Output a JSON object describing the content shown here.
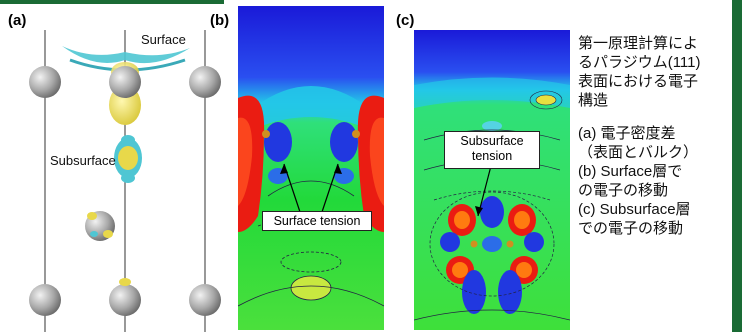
{
  "panel_a": {
    "label": "(a)",
    "surface_label": "Surface",
    "subsurface_label": "Subsurface"
  },
  "panel_b": {
    "label": "(b)",
    "annotation": "Surface tension"
  },
  "panel_c": {
    "label": "(c)",
    "annotation_line1": "Subsurface",
    "annotation_line2": "tension"
  },
  "caption": {
    "title_lines": [
      "第一原理計算によ",
      "るパラジウム(111)",
      "表面における電子",
      "構造"
    ],
    "legend_lines": [
      "(a)  電子密度差",
      "（表面とバルク）",
      " (b)  Surface層で",
      "の電子の移動",
      "(c)  Subsurface層",
      "での電子の移動"
    ]
  },
  "colors": {
    "accent_green": "#1a6b35",
    "density_positive": "#e8d84a",
    "density_negative": "#4fc6d3",
    "atom_gray": "#a8a8a8"
  }
}
